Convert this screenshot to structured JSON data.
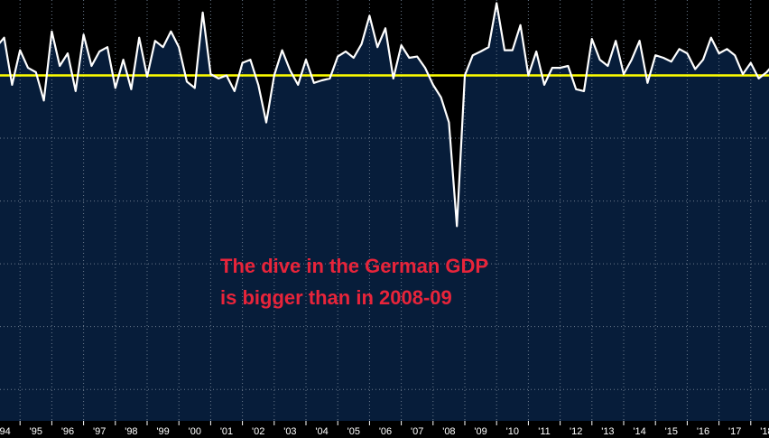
{
  "chart_data": {
    "type": "area",
    "title": "",
    "xlabel": "",
    "ylabel": "",
    "x_tick_labels": [
      "'94",
      "'95",
      "'96",
      "'97",
      "'98",
      "'99",
      "'00",
      "'01",
      "'02",
      "'03",
      "'04",
      "'05",
      "'06",
      "'07",
      "'08",
      "'09",
      "'10",
      "'11",
      "'12",
      "'13",
      "'14",
      "'15",
      "'16",
      "'17",
      "'18"
    ],
    "xlim": [
      1994.0,
      2019.0
    ],
    "ylim": [
      -5.5,
      1.2
    ],
    "reference_value": 0.0,
    "grid": "vertical dotted",
    "series": [
      {
        "x": [
          1994.0,
          1994.25,
          1994.5,
          1994.75,
          1995.0,
          1995.25,
          1995.5,
          1995.75,
          1996.0,
          1996.25,
          1996.5,
          1996.75,
          1997.0,
          1997.25,
          1997.5,
          1997.75,
          1998.0,
          1998.25,
          1998.5,
          1998.75,
          1999.0,
          1999.25,
          1999.5,
          1999.75,
          2000.0,
          2000.25,
          2000.5,
          2000.75,
          2001.0,
          2001.25,
          2001.5,
          2001.75,
          2002.0,
          2002.25,
          2002.5,
          2002.75,
          2003.0,
          2003.25,
          2003.5,
          2003.75,
          2004.0,
          2004.25,
          2004.5,
          2004.75,
          2005.0,
          2005.25,
          2005.5,
          2005.75,
          2006.0,
          2006.25,
          2006.5,
          2006.75,
          2007.0,
          2007.25,
          2007.5,
          2007.75,
          2008.0,
          2008.25,
          2008.5,
          2008.75,
          2009.0,
          2009.25,
          2009.5,
          2009.75,
          2010.0,
          2010.25,
          2010.5,
          2010.75,
          2011.0,
          2011.25,
          2011.5,
          2011.75,
          2012.0,
          2012.25,
          2012.5,
          2012.75,
          2013.0,
          2013.25,
          2013.5,
          2013.75,
          2014.0,
          2014.25,
          2014.5,
          2014.75,
          2015.0,
          2015.25,
          2015.5,
          2015.75,
          2016.0,
          2016.25,
          2016.5,
          2016.75,
          2017.0,
          2017.25,
          2017.5,
          2017.75,
          2018.0,
          2018.25,
          2018.5,
          2018.75,
          2019.0
        ],
        "values": [
          0.2,
          0.45,
          0.6,
          -0.15,
          0.4,
          0.12,
          0.05,
          -0.4,
          0.7,
          0.15,
          0.35,
          -0.25,
          0.65,
          0.15,
          0.38,
          0.45,
          -0.2,
          0.25,
          -0.22,
          0.6,
          -0.02,
          0.55,
          0.45,
          0.7,
          0.45,
          -0.1,
          -0.2,
          1.0,
          0.02,
          -0.05,
          0.0,
          -0.25,
          0.2,
          0.25,
          -0.15,
          -0.75,
          0.0,
          0.4,
          0.08,
          -0.15,
          0.25,
          -0.12,
          -0.08,
          -0.05,
          0.3,
          0.38,
          0.28,
          0.5,
          0.95,
          0.45,
          0.75,
          -0.05,
          0.48,
          0.28,
          0.3,
          0.12,
          -0.15,
          -0.35,
          -0.75,
          -2.4,
          0.0,
          0.32,
          0.38,
          0.45,
          1.15,
          0.4,
          0.4,
          0.8,
          0.0,
          0.38,
          -0.15,
          0.12,
          0.12,
          0.15,
          -0.22,
          -0.25,
          0.58,
          0.25,
          0.15,
          0.55,
          0.02,
          0.25,
          0.55,
          -0.12,
          0.32,
          0.28,
          0.22,
          0.42,
          0.35,
          0.1,
          0.25,
          0.6,
          0.35,
          0.42,
          0.32,
          0.02,
          0.2,
          -0.05,
          0.05,
          0.2,
          0.25
        ]
      }
    ],
    "colors": {
      "line": "#ffffff",
      "fill": "#071d3a",
      "reference_line": "#ffff00",
      "background": "#000000",
      "grid": "#6b7a8c",
      "annotation": "#e8243a"
    },
    "annotation": {
      "lines": [
        "The dive in the German GDP",
        "is bigger than in 2008-09"
      ]
    }
  }
}
